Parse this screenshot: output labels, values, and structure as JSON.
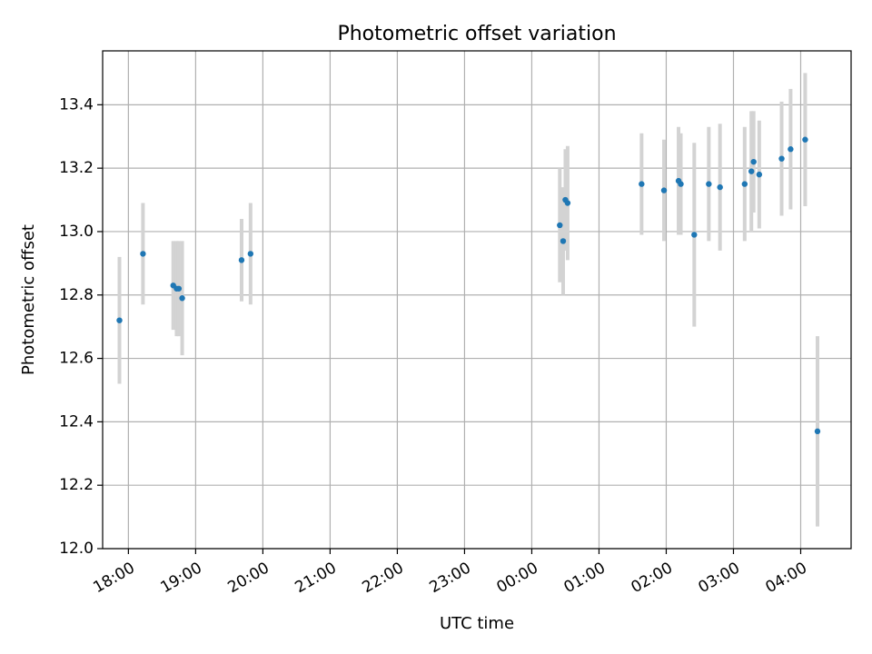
{
  "chart_data": {
    "type": "scatter",
    "title": "Photometric offset variation",
    "xlabel": "UTC time",
    "ylabel": "Photometric offset",
    "ylim": [
      12.0,
      13.57
    ],
    "xlim": [
      "17:37",
      "04:45"
    ],
    "x_ticks": [
      "18:00",
      "19:00",
      "20:00",
      "21:00",
      "22:00",
      "23:00",
      "00:00",
      "01:00",
      "02:00",
      "03:00",
      "04:00"
    ],
    "y_ticks": [
      "12.0",
      "12.2",
      "12.4",
      "12.6",
      "12.8",
      "13.0",
      "13.2",
      "13.4"
    ],
    "grid": true,
    "colors": {
      "point": "#1f77b4",
      "errorbar": "#d3d3d3",
      "grid": "#b0b0b0"
    },
    "points": [
      {
        "x": "17:52",
        "y": 12.72,
        "err": 0.2
      },
      {
        "x": "18:13",
        "y": 12.93,
        "err": 0.16
      },
      {
        "x": "18:40",
        "y": 12.83,
        "err": 0.14
      },
      {
        "x": "18:43",
        "y": 12.82,
        "err": 0.15
      },
      {
        "x": "18:45",
        "y": 12.82,
        "err": 0.15
      },
      {
        "x": "18:48",
        "y": 12.79,
        "err": 0.18
      },
      {
        "x": "19:41",
        "y": 12.91,
        "err": 0.13
      },
      {
        "x": "19:49",
        "y": 12.93,
        "err": 0.16
      },
      {
        "x": "00:25",
        "y": 13.02,
        "err": 0.18
      },
      {
        "x": "00:28",
        "y": 12.97,
        "err": 0.17
      },
      {
        "x": "00:30",
        "y": 13.1,
        "err": 0.16
      },
      {
        "x": "00:32",
        "y": 13.09,
        "err": 0.18
      },
      {
        "x": "01:38",
        "y": 13.15,
        "err": 0.16
      },
      {
        "x": "01:58",
        "y": 13.13,
        "err": 0.16
      },
      {
        "x": "02:11",
        "y": 13.16,
        "err": 0.17
      },
      {
        "x": "02:13",
        "y": 13.15,
        "err": 0.16
      },
      {
        "x": "02:25",
        "y": 12.99,
        "err": 0.29
      },
      {
        "x": "02:38",
        "y": 13.15,
        "err": 0.18
      },
      {
        "x": "02:48",
        "y": 13.14,
        "err": 0.2
      },
      {
        "x": "03:10",
        "y": 13.15,
        "err": 0.18
      },
      {
        "x": "03:16",
        "y": 13.19,
        "err": 0.19
      },
      {
        "x": "03:18",
        "y": 13.22,
        "err": 0.16
      },
      {
        "x": "03:23",
        "y": 13.18,
        "err": 0.17
      },
      {
        "x": "03:43",
        "y": 13.23,
        "err": 0.18
      },
      {
        "x": "03:51",
        "y": 13.26,
        "err": 0.19
      },
      {
        "x": "04:04",
        "y": 13.29,
        "err": 0.21
      },
      {
        "x": "04:15",
        "y": 12.37,
        "err": 0.3
      }
    ]
  }
}
